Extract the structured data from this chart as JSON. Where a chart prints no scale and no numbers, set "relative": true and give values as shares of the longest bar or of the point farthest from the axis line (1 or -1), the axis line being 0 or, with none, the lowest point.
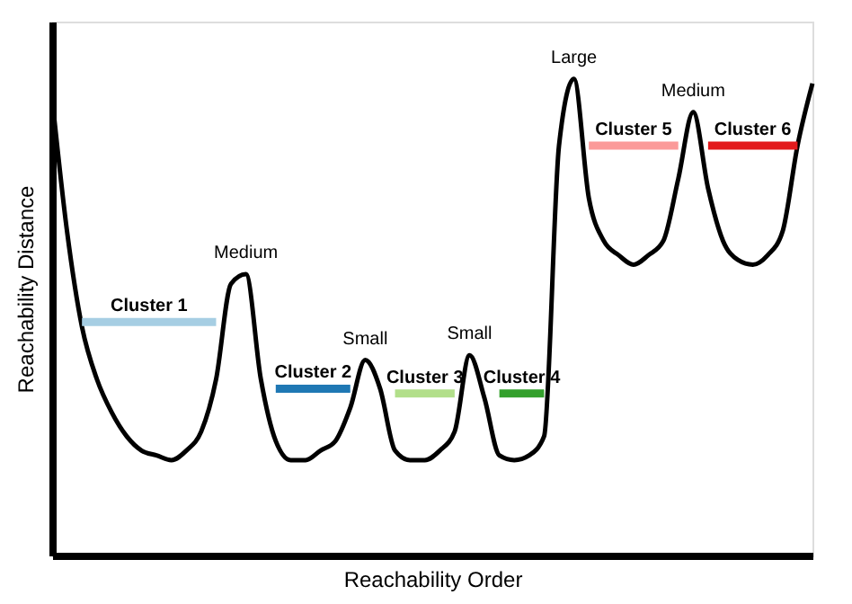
{
  "chart_data": {
    "type": "line",
    "relative": true,
    "xlabel": "Reachability Order",
    "ylabel": "Reachability Distance",
    "tick_labels": false,
    "grid": false,
    "marker": "none",
    "line_style": "solid",
    "categories": [
      null,
      null,
      null,
      null,
      null,
      null,
      null,
      null,
      null,
      null,
      null,
      null,
      null,
      null,
      null,
      null,
      null,
      null,
      null,
      null,
      null,
      null,
      null,
      null,
      null,
      null,
      null,
      null,
      null,
      null,
      null,
      null,
      null,
      null,
      null,
      null,
      null,
      null,
      null,
      null,
      null,
      null,
      null,
      null,
      null,
      null,
      null,
      null,
      null,
      null,
      null,
      null
    ],
    "annotations": [
      "Medium",
      "Small",
      "Small",
      "Large",
      "Medium"
    ],
    "series": [
      {
        "color": "#000000",
        "values": [
          0.96,
          0.68,
          0.48,
          0.37,
          0.3,
          0.25,
          0.22,
          0.21,
          0.2,
          0.22,
          0.26,
          0.37,
          0.57,
          0.59,
          0.37,
          0.24,
          0.2,
          0.2,
          0.22,
          0.24,
          0.31,
          0.41,
          0.35,
          0.22,
          0.2,
          0.2,
          0.22,
          0.26,
          0.42,
          0.33,
          0.21,
          0.2,
          0.21,
          0.25,
          0.86,
          1.0,
          0.75,
          0.66,
          0.63,
          0.61,
          0.63,
          0.66,
          0.79,
          0.93,
          0.77,
          0.66,
          0.62,
          0.61,
          0.63,
          0.68,
          0.86,
          0.99
        ]
      },
      {
        "name": "Cluster 1",
        "color": "#a6cee3",
        "values": [
          null,
          null,
          0.49,
          0.49,
          0.49,
          0.49,
          0.49,
          0.49,
          0.49,
          0.49,
          0.49,
          0.49,
          null,
          null,
          null,
          null,
          null,
          null,
          null,
          null,
          null,
          null,
          null,
          null,
          null,
          null,
          null,
          null,
          null,
          null,
          null,
          null,
          null,
          null,
          null,
          null,
          null,
          null,
          null,
          null,
          null,
          null,
          null,
          null,
          null,
          null,
          null,
          null,
          null,
          null,
          null,
          null
        ]
      },
      {
        "name": "Cluster 2",
        "color": "#1f78b4",
        "values": [
          null,
          null,
          null,
          null,
          null,
          null,
          null,
          null,
          null,
          null,
          null,
          null,
          null,
          null,
          null,
          0.35,
          0.35,
          0.35,
          0.35,
          0.35,
          0.35,
          null,
          null,
          null,
          null,
          null,
          null,
          null,
          null,
          null,
          null,
          null,
          null,
          null,
          null,
          null,
          null,
          null,
          null,
          null,
          null,
          null,
          null,
          null,
          null,
          null,
          null,
          null,
          null,
          null,
          null,
          null
        ]
      },
      {
        "name": "Cluster 3",
        "color": "#b2df8a",
        "values": [
          null,
          null,
          null,
          null,
          null,
          null,
          null,
          null,
          null,
          null,
          null,
          null,
          null,
          null,
          null,
          null,
          null,
          null,
          null,
          null,
          null,
          null,
          null,
          0.34,
          0.34,
          0.34,
          0.34,
          0.34,
          null,
          null,
          null,
          null,
          null,
          null,
          null,
          null,
          null,
          null,
          null,
          null,
          null,
          null,
          null,
          null,
          null,
          null,
          null,
          null,
          null,
          null,
          null,
          null
        ]
      },
      {
        "name": "Cluster 4",
        "color": "#33a02c",
        "values": [
          null,
          null,
          null,
          null,
          null,
          null,
          null,
          null,
          null,
          null,
          null,
          null,
          null,
          null,
          null,
          null,
          null,
          null,
          null,
          null,
          null,
          null,
          null,
          null,
          null,
          null,
          null,
          null,
          null,
          null,
          0.34,
          0.34,
          0.34,
          0.34,
          null,
          null,
          null,
          null,
          null,
          null,
          null,
          null,
          null,
          null,
          null,
          null,
          null,
          null,
          null,
          null,
          null,
          null
        ]
      },
      {
        "name": "Cluster 5",
        "color": "#fb9a99",
        "values": [
          null,
          null,
          null,
          null,
          null,
          null,
          null,
          null,
          null,
          null,
          null,
          null,
          null,
          null,
          null,
          null,
          null,
          null,
          null,
          null,
          null,
          null,
          null,
          null,
          null,
          null,
          null,
          null,
          null,
          null,
          null,
          null,
          null,
          null,
          null,
          null,
          0.86,
          0.86,
          0.86,
          0.86,
          0.86,
          0.86,
          0.86,
          null,
          null,
          null,
          null,
          null,
          null,
          null,
          null,
          null
        ]
      },
      {
        "name": "Cluster 6",
        "color": "#e31a1c",
        "values": [
          null,
          null,
          null,
          null,
          null,
          null,
          null,
          null,
          null,
          null,
          null,
          null,
          null,
          null,
          null,
          null,
          null,
          null,
          null,
          null,
          null,
          null,
          null,
          null,
          null,
          null,
          null,
          null,
          null,
          null,
          null,
          null,
          null,
          null,
          null,
          null,
          null,
          null,
          null,
          null,
          null,
          null,
          null,
          null,
          0.86,
          0.86,
          0.86,
          0.86,
          0.86,
          0.86,
          0.86,
          null
        ]
      }
    ]
  }
}
